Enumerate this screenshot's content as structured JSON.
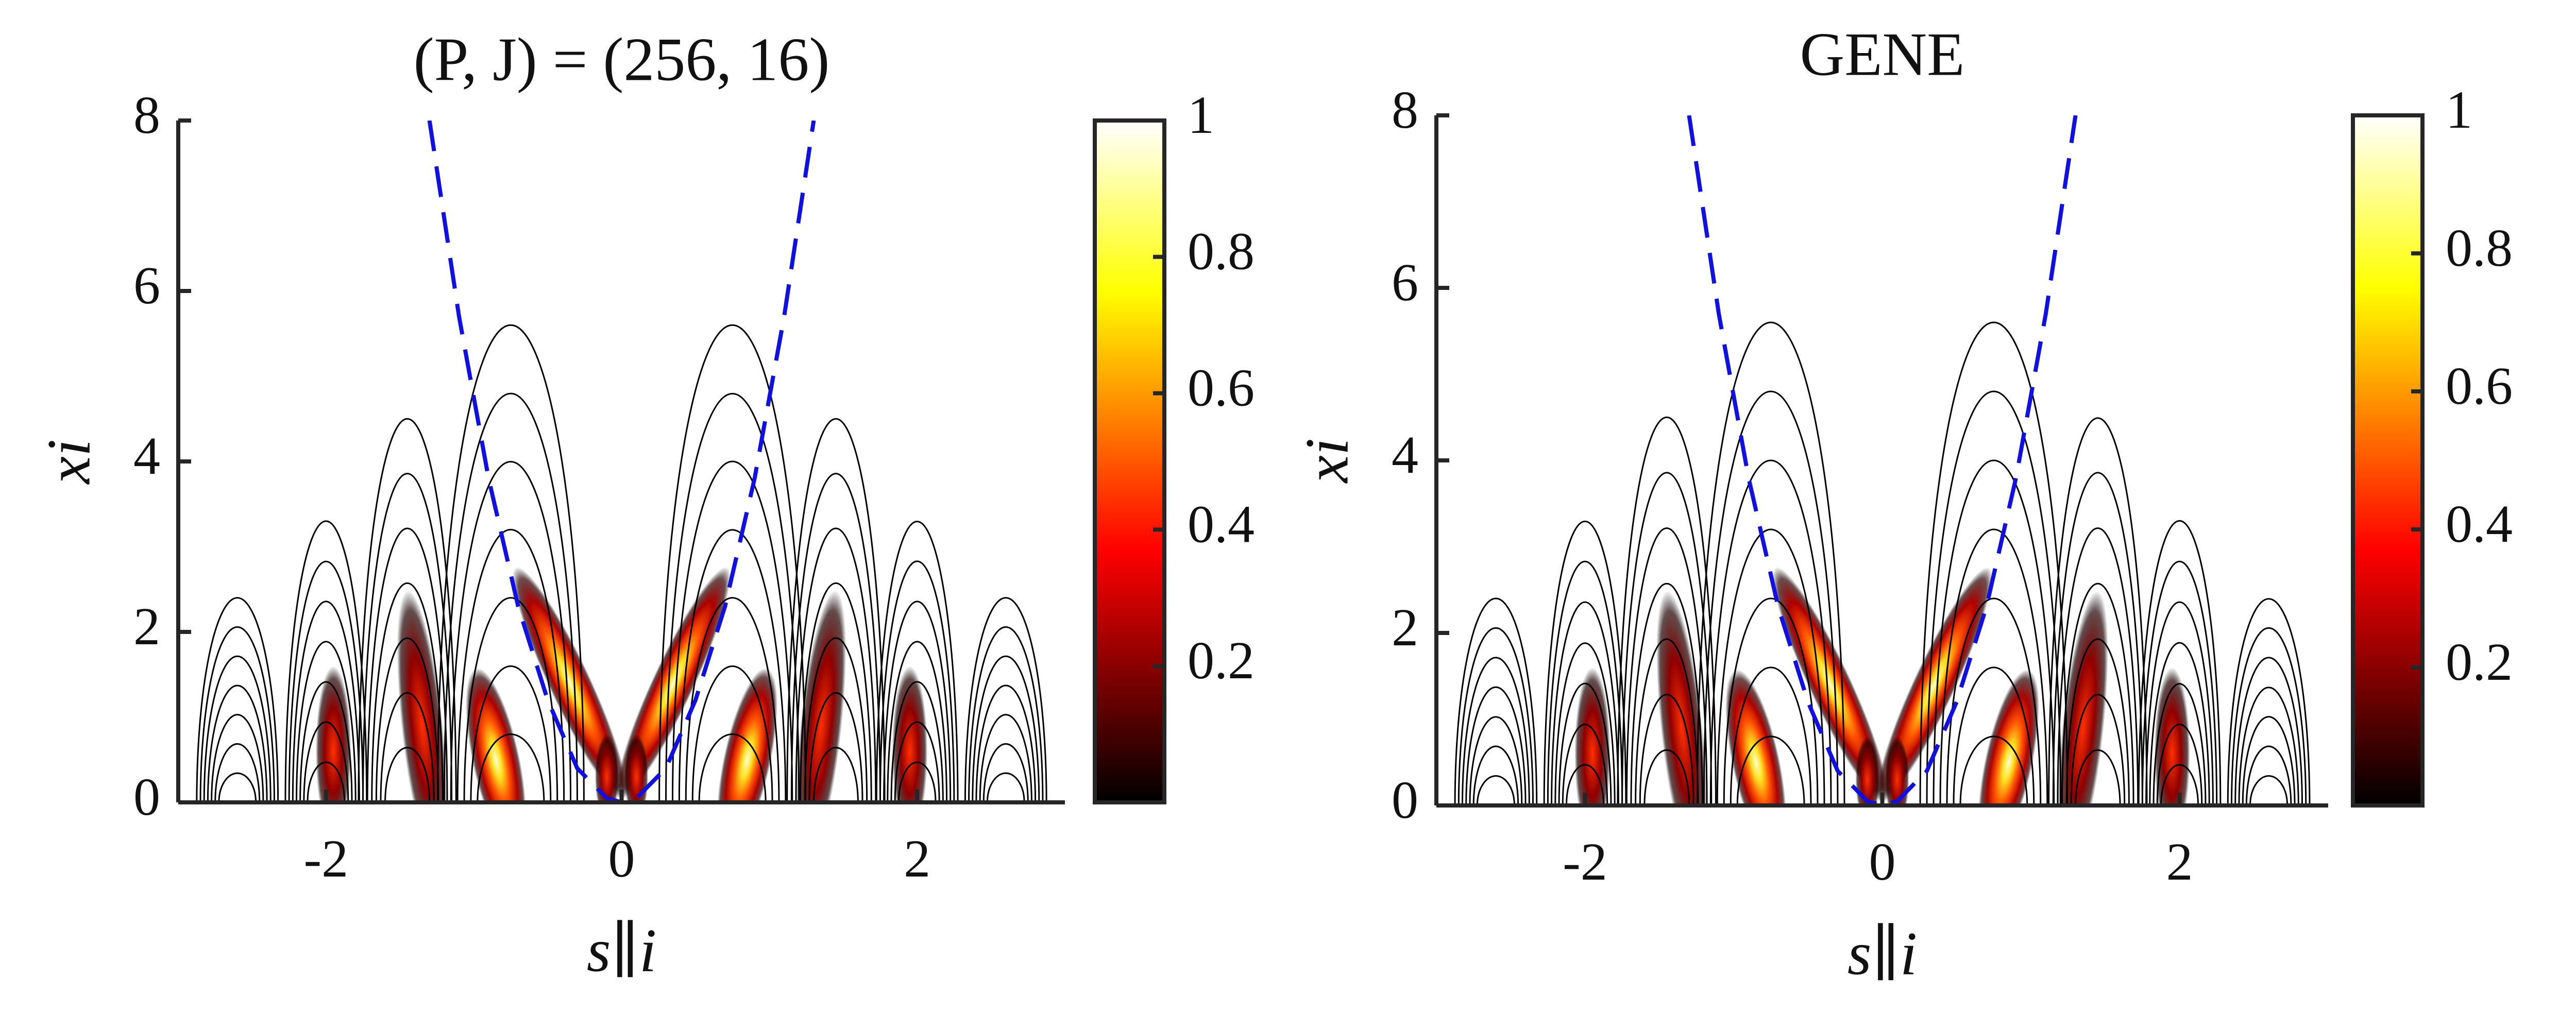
{
  "chart_data": [
    {
      "type": "contour",
      "title": "(P, J) = (256, 16)",
      "xlabel": "s∥i",
      "ylabel": "xi",
      "xlim": [
        -3,
        3
      ],
      "ylim": [
        0,
        8
      ],
      "xticks": [
        -2,
        0,
        2
      ],
      "yticks": [
        0,
        2,
        4,
        6,
        8
      ],
      "colorbar": {
        "lim": [
          0,
          1
        ],
        "ticks": [
          0.2,
          0.4,
          0.6,
          0.8,
          1
        ]
      },
      "curve": {
        "color": "#1010e0",
        "x": [
          -1.3,
          -1.1,
          -0.9,
          -0.7,
          -0.5,
          -0.3,
          -0.1,
          0,
          0.1,
          0.3,
          0.5,
          0.7,
          0.9,
          1.1,
          1.3
        ],
        "y": [
          8,
          5.7,
          3.8,
          2.3,
          1.2,
          0.4,
          0.05,
          0,
          0.05,
          0.4,
          1.2,
          2.3,
          3.8,
          5.7,
          8
        ]
      }
    },
    {
      "type": "contour",
      "title": "GENE",
      "xlabel": "s∥i",
      "ylabel": "xi",
      "xlim": [
        -3,
        3
      ],
      "ylim": [
        0,
        8
      ],
      "xticks": [
        -2,
        0,
        2
      ],
      "yticks": [
        0,
        2,
        4,
        6,
        8
      ],
      "colorbar": {
        "lim": [
          0,
          1
        ],
        "ticks": [
          0.2,
          0.4,
          0.6,
          0.8,
          1
        ]
      },
      "curve": {
        "color": "#1010e0",
        "x": [
          -1.3,
          -1.1,
          -0.9,
          -0.7,
          -0.5,
          -0.3,
          -0.1,
          0,
          0.1,
          0.3,
          0.5,
          0.7,
          0.9,
          1.1,
          1.3
        ],
        "y": [
          8,
          5.7,
          3.8,
          2.3,
          1.2,
          0.4,
          0.05,
          0,
          0.05,
          0.4,
          1.2,
          2.3,
          3.8,
          5.7,
          8
        ]
      }
    }
  ]
}
